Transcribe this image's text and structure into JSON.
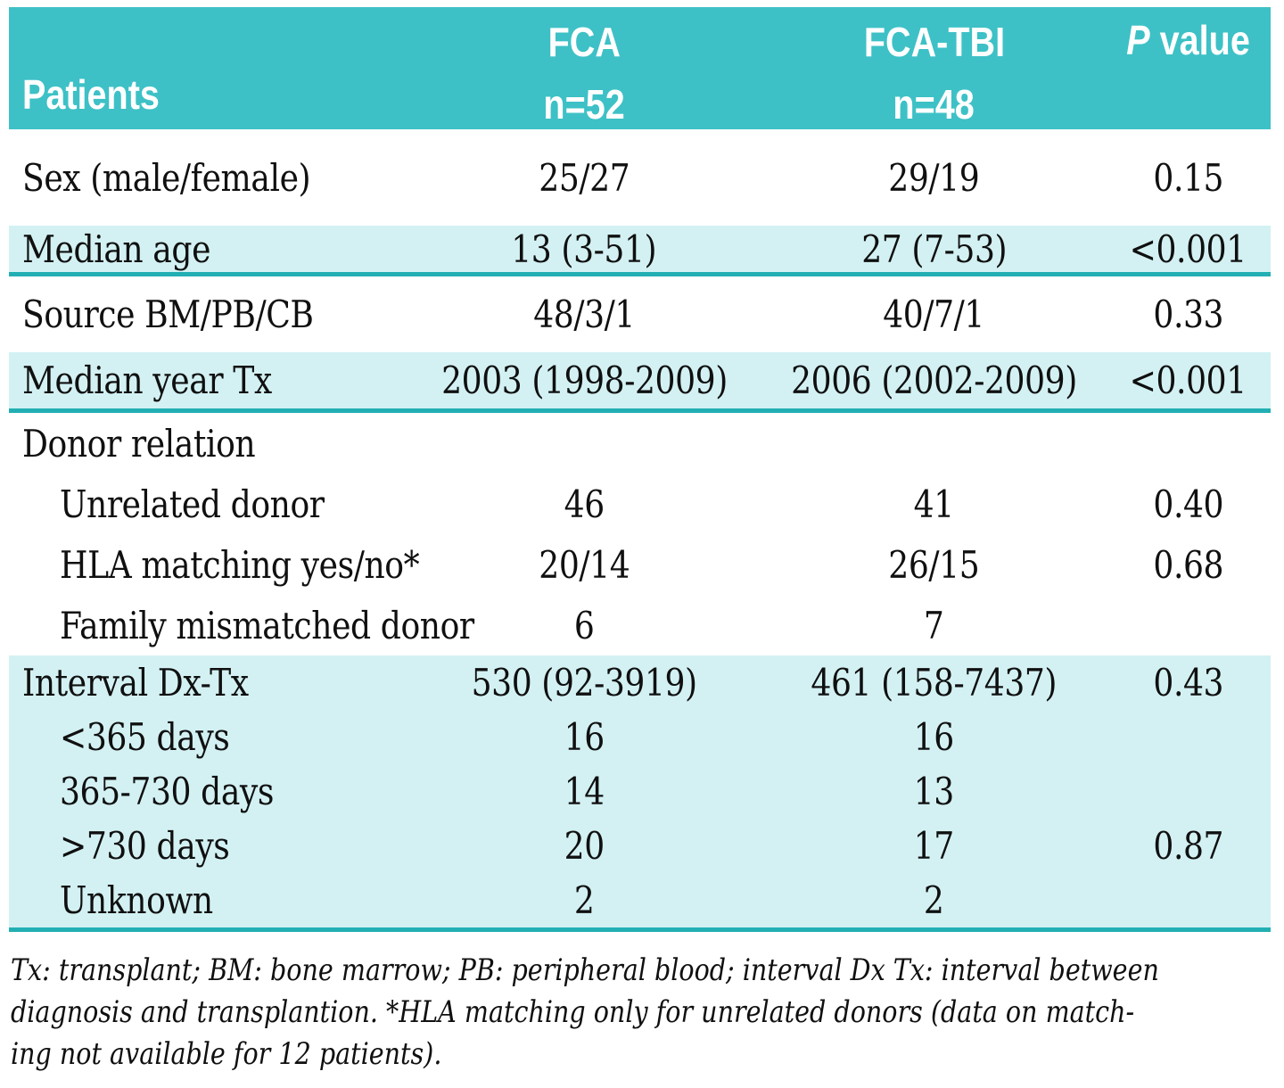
{
  "header": {
    "patients_label": "Patients",
    "fca_top": "FCA",
    "fca_bottom": "n=52",
    "fcatbi_top": "FCA-TBI",
    "fcatbi_bottom": "n=48",
    "p_italic": "P",
    "p_rest": " value"
  },
  "rows": [
    {
      "label": "Sex (male/female)",
      "fca": "25/27",
      "fca_tbi": "29/19",
      "p": "0.15"
    },
    {
      "label": "Median age",
      "fca": "13 (3-51)",
      "fca_tbi": "27 (7-53)",
      "p": "<0.001"
    },
    {
      "label": "Source BM/PB/CB",
      "fca": "48/3/1",
      "fca_tbi": "40/7/1",
      "p": "0.33"
    },
    {
      "label": "Median year Tx",
      "fca": "2003 (1998-2009)",
      "fca_tbi": "2006 (2002-2009)",
      "p": "<0.001"
    },
    {
      "label": "Donor relation",
      "fca": "",
      "fca_tbi": "",
      "p": ""
    },
    {
      "label": "Unrelated donor",
      "fca": "46",
      "fca_tbi": "41",
      "p": "0.40"
    },
    {
      "label": "HLA matching yes/no*",
      "fca": "20/14",
      "fca_tbi": "26/15",
      "p": "0.68"
    },
    {
      "label": "Family mismatched donor",
      "fca": "6",
      "fca_tbi": "7",
      "p": ""
    },
    {
      "label": "Interval Dx-Tx",
      "fca": "530 (92-3919)",
      "fca_tbi": "461 (158-7437)",
      "p": "0.43"
    },
    {
      "label": "<365 days",
      "fca": "16",
      "fca_tbi": "16",
      "p": ""
    },
    {
      "label": "365-730 days",
      "fca": "14",
      "fca_tbi": "13",
      "p": ""
    },
    {
      "label": ">730 days",
      "fca": "20",
      "fca_tbi": "17",
      "p": "0.87"
    },
    {
      "label": "Unknown",
      "fca": "2",
      "fca_tbi": "2",
      "p": ""
    }
  ],
  "footnote_lines": [
    "Tx: transplant; BM: bone marrow; PB: peripheral blood; interval Dx Tx: interval between",
    "diagnosis and transplantion. *HLA matching only for unrelated donors (data on match-",
    "ing not available for 12 patients)."
  ],
  "colors": {
    "header_bg": "#3DC1C6",
    "band_bg": "#D3F1F3",
    "divider": "#22AFB4",
    "header_text": "#FFFFFF",
    "body_text": "#101010"
  }
}
